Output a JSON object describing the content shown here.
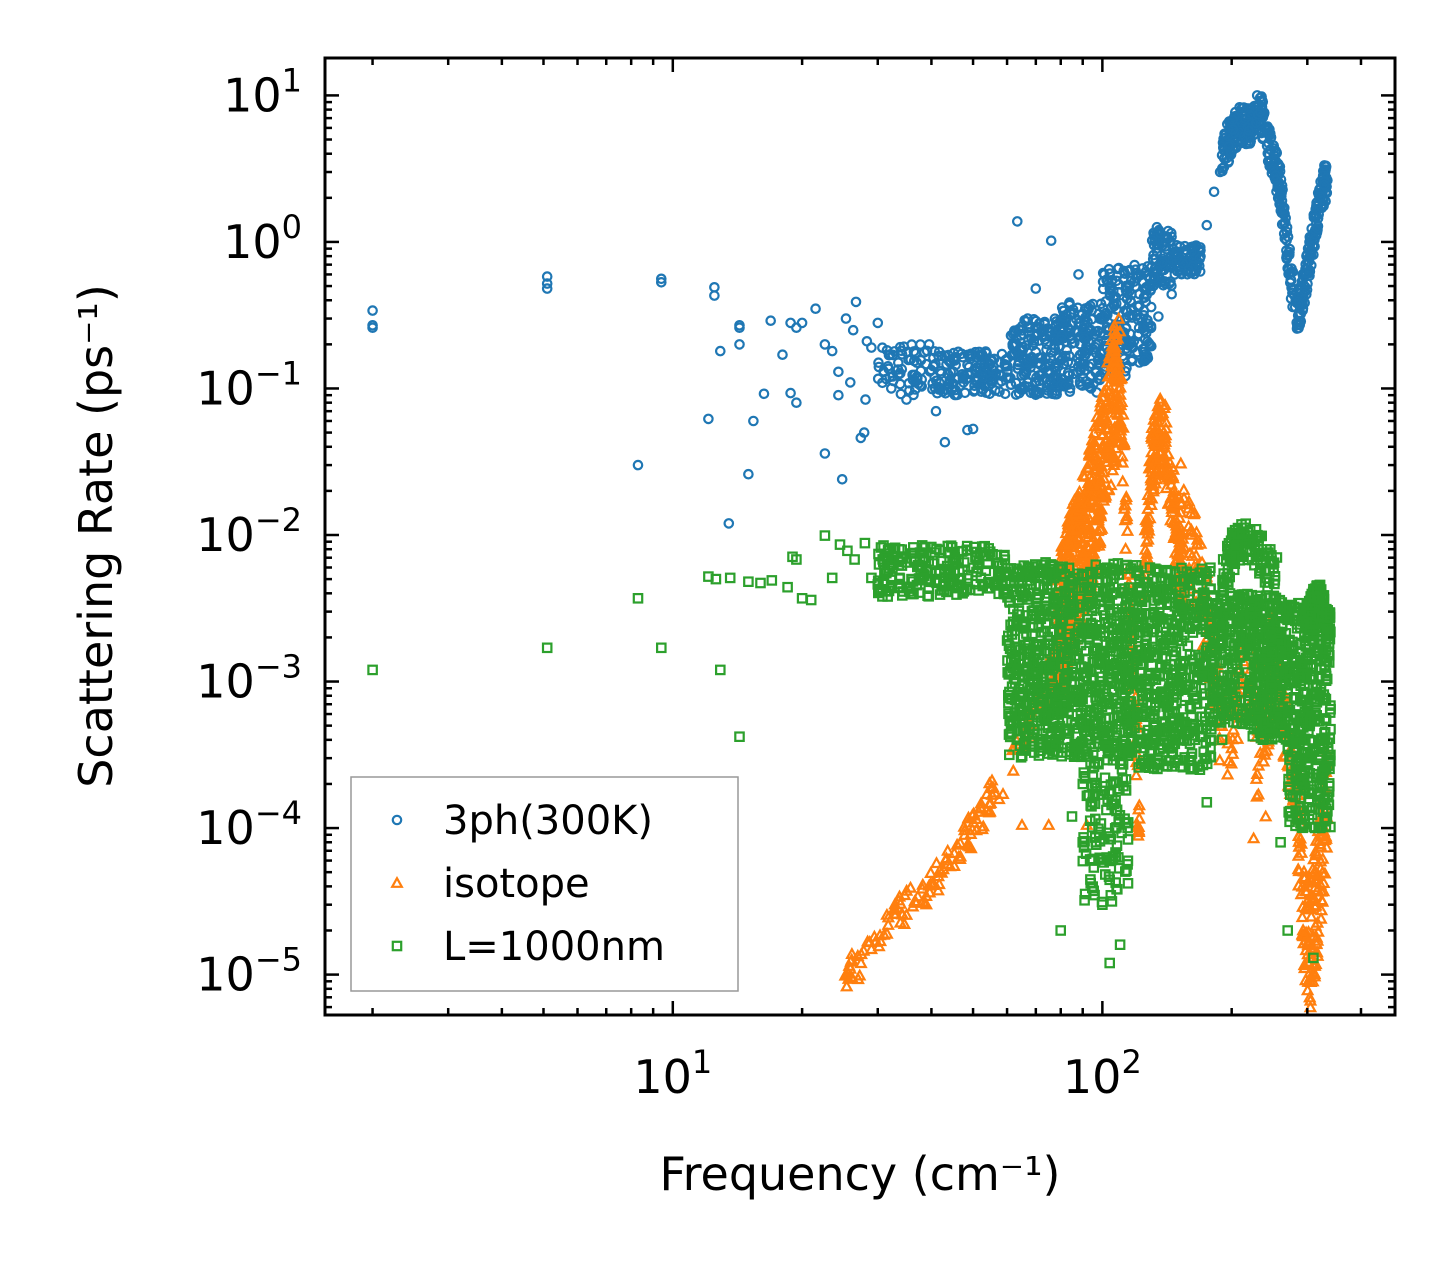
{
  "chart_data": {
    "type": "scatter",
    "title": "",
    "xlabel": "Frequency (cm⁻¹)",
    "ylabel": "Scattering Rate (ps⁻¹)",
    "xscale": "log",
    "yscale": "log",
    "xlim": [
      1.55,
      480
    ],
    "ylim": [
      5.3e-06,
      18
    ],
    "x_ticks": [
      {
        "value": 10,
        "base": "10",
        "exp": "1"
      },
      {
        "value": 100,
        "base": "10",
        "exp": "2"
      }
    ],
    "y_ticks": [
      {
        "value": 1e-05,
        "base": "10",
        "exp": "−5"
      },
      {
        "value": 0.0001,
        "base": "10",
        "exp": "−4"
      },
      {
        "value": 0.001,
        "base": "10",
        "exp": "−3"
      },
      {
        "value": 0.01,
        "base": "10",
        "exp": "−2"
      },
      {
        "value": 0.1,
        "base": "10",
        "exp": "−1"
      },
      {
        "value": 1,
        "base": "10",
        "exp": "0"
      },
      {
        "value": 10,
        "base": "10",
        "exp": "1"
      }
    ],
    "legend": {
      "position": "lower-left"
    },
    "series": [
      {
        "name": "3ph(300K)",
        "marker": "circle",
        "color": "#1f77b4",
        "points": [
          [
            2.0,
            0.34
          ],
          [
            2.0,
            0.27
          ],
          [
            2.0,
            0.26
          ],
          [
            5.1,
            0.58
          ],
          [
            5.1,
            0.52
          ],
          [
            5.1,
            0.48
          ],
          [
            9.4,
            0.56
          ],
          [
            9.4,
            0.53
          ],
          [
            8.3,
            0.03
          ],
          [
            12.5,
            0.49
          ],
          [
            12.5,
            0.43
          ],
          [
            12.9,
            0.18
          ],
          [
            12.1,
            0.062
          ],
          [
            13.5,
            0.012
          ],
          [
            14.3,
            0.27
          ],
          [
            14.3,
            0.26
          ],
          [
            14.3,
            0.2
          ],
          [
            15,
            0.026
          ],
          [
            15.4,
            0.06
          ],
          [
            16.3,
            0.092
          ],
          [
            16.9,
            0.29
          ],
          [
            18,
            0.17
          ],
          [
            18.8,
            0.28
          ],
          [
            19.4,
            0.26
          ],
          [
            19.4,
            0.08
          ],
          [
            18.8,
            0.093
          ],
          [
            20,
            0.28
          ],
          [
            21.5,
            0.35
          ],
          [
            22.6,
            0.2
          ],
          [
            22.6,
            0.036
          ],
          [
            23.5,
            0.18
          ],
          [
            24.3,
            0.13
          ],
          [
            24.3,
            0.09
          ],
          [
            24.8,
            0.024
          ],
          [
            25.3,
            0.3
          ],
          [
            25.9,
            0.11
          ],
          [
            26.3,
            0.25
          ],
          [
            26.7,
            0.39
          ],
          [
            27.4,
            0.046
          ],
          [
            28.1,
            0.084
          ],
          [
            27.9,
            0.05
          ],
          [
            28.3,
            0.21
          ],
          [
            29,
            0.19
          ],
          [
            30,
            0.28
          ],
          [
            31,
            0.13
          ],
          [
            32,
            0.12
          ],
          [
            33.5,
            0.15
          ],
          [
            35,
            0.084
          ],
          [
            37,
            0.15
          ],
          [
            39.5,
            0.2
          ],
          [
            41,
            0.07
          ],
          [
            43,
            0.043
          ],
          [
            45,
            0.13
          ],
          [
            47.5,
            0.11
          ],
          [
            48.5,
            0.052
          ],
          [
            50,
            0.053
          ],
          [
            55,
            0.12
          ],
          [
            60,
            0.13
          ],
          [
            63.4,
            1.38
          ],
          [
            67,
            0.3
          ],
          [
            70,
            0.48
          ],
          [
            76,
            1.02
          ],
          [
            80,
            0.25
          ],
          [
            84,
            0.095
          ],
          [
            88,
            0.6
          ],
          [
            92,
            0.24
          ],
          [
            97,
            0.094
          ],
          [
            110,
            0.29
          ],
          [
            122,
            0.44
          ],
          [
            135,
            0.31
          ],
          [
            145,
            0.44
          ],
          [
            160,
            0.71
          ],
          [
            175,
            1.3
          ],
          [
            182,
            2.2
          ],
          [
            188,
            3.0
          ]
        ],
        "bands": [
          {
            "x": [
              30,
              40
            ],
            "y": [
              0.09,
              0.2
            ],
            "n": 60
          },
          {
            "x": [
              40,
              60
            ],
            "y": [
              0.09,
              0.18
            ],
            "n": 140
          },
          {
            "x": [
              60,
              80
            ],
            "y": [
              0.09,
              0.3
            ],
            "n": 170
          },
          {
            "x": [
              80,
              100
            ],
            "y": [
              0.1,
              0.4
            ],
            "n": 140
          },
          {
            "x": [
              100,
              115
            ],
            "y": [
              0.12,
              0.7
            ],
            "n": 110
          },
          {
            "x": [
              115,
              130
            ],
            "y": [
              0.15,
              0.7
            ],
            "n": 90
          },
          {
            "x": [
              130,
              145
            ],
            "y": [
              0.5,
              1.3
            ],
            "n": 80
          },
          {
            "x": [
              145,
              170
            ],
            "y": [
              0.6,
              0.95
            ],
            "n": 70
          }
        ],
        "curves": [
          {
            "x": [
              190,
              200,
              210,
              220,
              232,
              245,
              258,
              268,
              275,
              283,
              292,
              305,
              320,
              335
            ],
            "y": [
              4.0,
              5.3,
              6.2,
              6.0,
              8.5,
              4.2,
              2.6,
              1.1,
              0.55,
              0.31,
              0.42,
              0.85,
              1.8,
              3.0
            ],
            "spread": 0.14,
            "n": 420
          }
        ]
      },
      {
        "name": "isotope",
        "marker": "triangle",
        "color": "#ff7f0e",
        "points": [
          [
            65,
            0.000105
          ],
          [
            75,
            0.000105
          ],
          [
            92,
            0.000105
          ],
          [
            130,
            0.016
          ],
          [
            140,
            0.077
          ],
          [
            160,
            0.0075
          ],
          [
            175,
            0.0055
          ],
          [
            185,
            0.0013
          ],
          [
            200,
            0.00035
          ],
          [
            212,
            0.0018
          ],
          [
            225,
            8.5e-05
          ],
          [
            240,
            0.00012
          ],
          [
            250,
            0.00045
          ]
        ],
        "curves": [
          {
            "x": [
              25,
              30,
              33,
              40,
              50,
              60,
              70,
              80
            ],
            "y": [
              1e-05,
              1.5e-05,
              2.5e-05,
              4e-05,
              0.0001,
              0.00025,
              0.0006,
              0.0018
            ],
            "spread": 0.12,
            "n": 160
          },
          {
            "x": [
              78,
              85,
              92,
              100,
              106,
              110
            ],
            "y": [
              0.002,
              0.005,
              0.01,
              0.03,
              0.08,
              0.12
            ],
            "spread": 0.5,
            "n": 520
          },
          {
            "x": [
              110,
              114,
              118,
              122
            ],
            "y": [
              0.1,
              0.01,
              0.001,
              0.0001
            ],
            "spread": 0.3,
            "n": 80
          },
          {
            "x": [
              125,
              130,
              136,
              140,
              145,
              150,
              155
            ],
            "y": [
              0.005,
              0.03,
              0.05,
              0.04,
              0.02,
              0.008,
              0.005
            ],
            "spread": 0.25,
            "n": 200
          },
          {
            "x": [
              150,
              160,
              170,
              180,
              190
            ],
            "y": [
              0.02,
              0.01,
              0.004,
              0.0015,
              0.0005
            ],
            "spread": 0.35,
            "n": 80
          },
          {
            "x": [
              195,
              205,
              215,
              225
            ],
            "y": [
              0.0004,
              0.0006,
              0.0012,
              0.0008
            ],
            "spread": 0.25,
            "n": 40
          },
          {
            "x": [
              228,
              238,
              250,
              262,
              272,
              280
            ],
            "y": [
              0.0003,
              0.0004,
              0.0015,
              0.0007,
              0.0003,
              0.00015
            ],
            "spread": 0.3,
            "n": 90
          },
          {
            "x": [
              285,
              295,
              305,
              315,
              325,
              335
            ],
            "y": [
              0.0001,
              3e-05,
              1.5e-05,
              3e-05,
              8e-05,
              0.0002
            ],
            "spread": 0.45,
            "n": 160
          }
        ]
      },
      {
        "name": "L=1000nm",
        "marker": "square",
        "color": "#2ca02c",
        "points": [
          [
            2.0,
            0.0012
          ],
          [
            5.1,
            0.0017
          ],
          [
            8.3,
            0.0037
          ],
          [
            9.4,
            0.0017
          ],
          [
            12.1,
            0.0052
          ],
          [
            12.6,
            0.005
          ],
          [
            12.9,
            0.0012
          ],
          [
            13.6,
            0.0051
          ],
          [
            14.3,
            0.00042
          ],
          [
            15,
            0.0048
          ],
          [
            16,
            0.0047
          ],
          [
            17,
            0.0049
          ],
          [
            18.5,
            0.0044
          ],
          [
            19,
            0.0071
          ],
          [
            19.4,
            0.0068
          ],
          [
            20,
            0.0037
          ],
          [
            21,
            0.0036
          ],
          [
            22.6,
            0.0099
          ],
          [
            23.5,
            0.0051
          ],
          [
            24.5,
            0.0086
          ],
          [
            25.5,
            0.0078
          ],
          [
            26.5,
            0.0068
          ],
          [
            28,
            0.0088
          ],
          [
            29,
            0.0051
          ],
          [
            30,
            0.0046
          ],
          [
            78,
            0.0004
          ],
          [
            85,
            0.00012
          ],
          [
            90,
            8e-05
          ],
          [
            95,
            6e-05
          ],
          [
            100,
            3e-05
          ],
          [
            104,
            1.2e-05
          ],
          [
            110,
            1.6e-05
          ],
          [
            80,
            2e-05
          ],
          [
            115,
            0.0005
          ],
          [
            175,
            0.00015
          ],
          [
            190,
            0.0004
          ],
          [
            250,
            0.0005
          ],
          [
            260,
            8e-05
          ],
          [
            300,
            0.0003
          ],
          [
            320,
            0.0002
          ],
          [
            330,
            0.0004
          ],
          [
            270,
            2e-05
          ],
          [
            310,
            1.3e-05
          ]
        ],
        "bands": [
          {
            "x": [
              30,
              60
            ],
            "y": [
              0.0038,
              0.0085
            ],
            "n": 220
          },
          {
            "x": [
              60,
              120
            ],
            "y": [
              0.0003,
              0.0065
            ],
            "n": 900
          },
          {
            "x": [
              90,
              115
            ],
            "y": [
              3e-05,
              0.0003
            ],
            "n": 120
          },
          {
            "x": [
              120,
              180
            ],
            "y": [
              0.00025,
              0.006
            ],
            "n": 520
          },
          {
            "x": [
              180,
              220
            ],
            "y": [
              0.0005,
              0.004
            ],
            "n": 200
          },
          {
            "x": [
              220,
              270
            ],
            "y": [
              0.0004,
              0.004
            ],
            "n": 320
          },
          {
            "x": [
              270,
              340
            ],
            "y": [
              0.0001,
              0.0035
            ],
            "n": 380
          }
        ],
        "curves": [
          {
            "x": [
              190,
              200,
              212,
              225,
              240,
              255
            ],
            "y": [
              0.0048,
              0.0075,
              0.009,
              0.0085,
              0.0065,
              0.005
            ],
            "spread": 0.15,
            "n": 120
          },
          {
            "x": [
              300,
              310,
              320,
              330,
              340
            ],
            "y": [
              0.0025,
              0.0033,
              0.0036,
              0.003,
              0.0022
            ],
            "spread": 0.12,
            "n": 120
          }
        ]
      }
    ]
  }
}
